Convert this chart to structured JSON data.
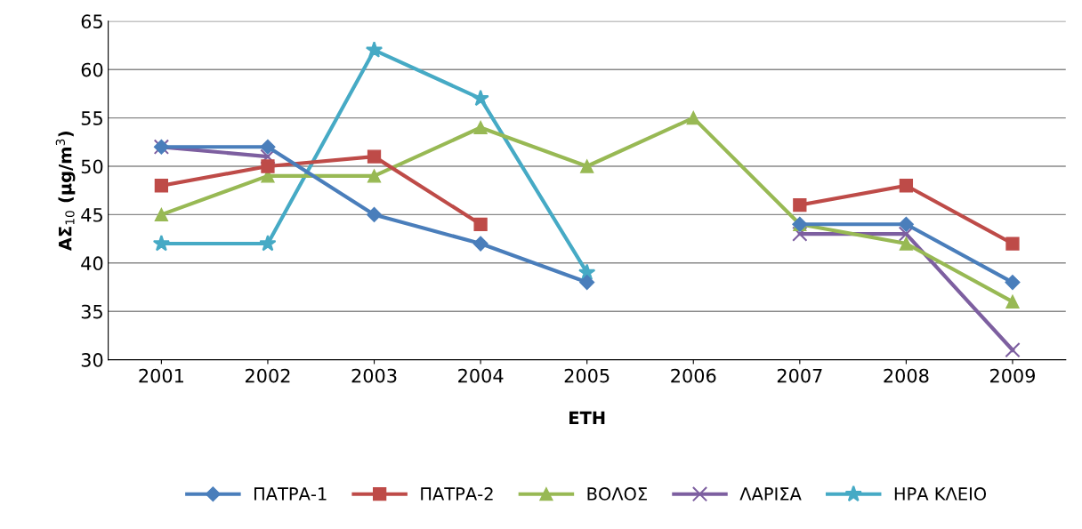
{
  "chart_data": {
    "type": "line",
    "xlabel": "ΕΤΗ",
    "ylabel": "ΑΣ$_{10}$ (μg/m$^{3}$)",
    "categories": [
      "2001",
      "2002",
      "2003",
      "2004",
      "2005",
      "2006",
      "2007",
      "2008",
      "2009"
    ],
    "ylim": [
      30,
      65
    ],
    "yticks": [
      30,
      35,
      40,
      45,
      50,
      55,
      60,
      65
    ],
    "grid": "y",
    "legend": "bottom",
    "line_style": "solid",
    "series": [
      {
        "name": "ΠΑΤΡΑ-1",
        "color": "#4a7ebb",
        "marker": "diamond",
        "values": [
          52,
          52,
          45,
          42,
          38,
          null,
          44,
          44,
          38
        ]
      },
      {
        "name": "ΠΑΤΡΑ-2",
        "color": "#be4b48",
        "marker": "square",
        "values": [
          48,
          50,
          51,
          44,
          null,
          null,
          46,
          48,
          42
        ]
      },
      {
        "name": "ΒΟΛΟΣ",
        "color": "#98b954",
        "marker": "triangle",
        "values": [
          45,
          49,
          49,
          54,
          50,
          55,
          44,
          42,
          36
        ]
      },
      {
        "name": "ΛΑΡΙΣΑ",
        "color": "#7d5fa0",
        "marker": "cross",
        "values": [
          52,
          51,
          null,
          null,
          null,
          null,
          43,
          43,
          31
        ]
      },
      {
        "name": "ΗΡΑ ΚΛΕΙΟ",
        "color": "#46aac5",
        "marker": "star",
        "values": [
          42,
          42,
          62,
          57,
          39,
          null,
          null,
          null,
          null
        ]
      }
    ]
  }
}
